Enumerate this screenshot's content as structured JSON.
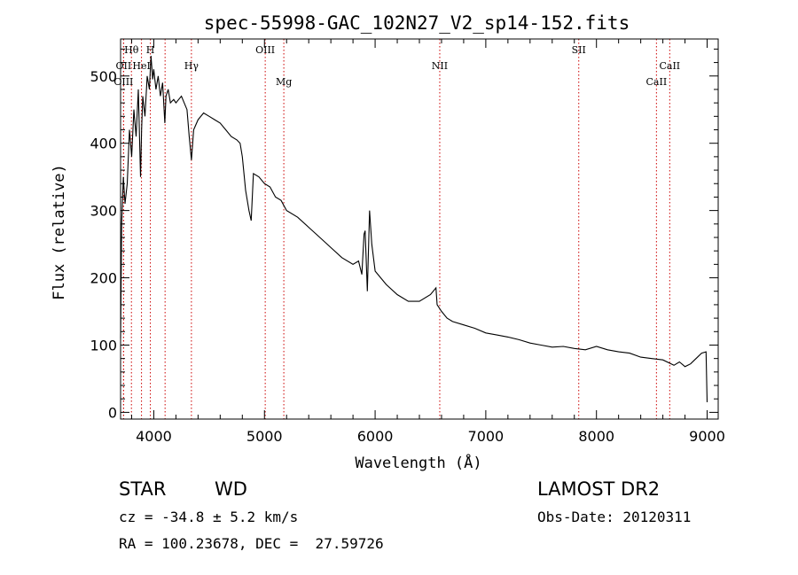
{
  "colors": {
    "line_marker": "#cc0000",
    "spectrum": "#000000"
  },
  "chart_data": {
    "type": "line",
    "title": "spec-55998-GAC_102N27_V2_sp14-152.fits",
    "xlabel": "Wavelength (Å)",
    "ylabel": "Flux (relative)",
    "xlim": [
      3700,
      9100
    ],
    "ylim": [
      -10,
      555
    ],
    "x_ticks": [
      4000,
      5000,
      6000,
      7000,
      8000,
      9000
    ],
    "y_ticks": [
      0,
      100,
      200,
      300,
      400,
      500
    ],
    "x_tick_labels": [
      "4000",
      "5000",
      "6000",
      "7000",
      "8000",
      "9000"
    ],
    "y_tick_labels": [
      "0",
      "100",
      "200",
      "300",
      "400",
      "500"
    ],
    "grid": false,
    "legend": "none",
    "spectral_lines": [
      {
        "label": "Hθ",
        "wavelength": 3798,
        "row": 0
      },
      {
        "label": "OII",
        "wavelength": 3727,
        "row": 1
      },
      {
        "label": "OIII",
        "wavelength": 3727,
        "row": 2
      },
      {
        "label": "HeI",
        "wavelength": 3889,
        "row": 1
      },
      {
        "label": "H",
        "wavelength": 3969,
        "row": 0
      },
      {
        "label": "",
        "wavelength": 4102,
        "row": 0
      },
      {
        "label": "Hγ",
        "wavelength": 4340,
        "row": 1
      },
      {
        "label": "OIII",
        "wavelength": 5007,
        "row": 0
      },
      {
        "label": "Mg",
        "wavelength": 5175,
        "row": 2
      },
      {
        "label": "NII",
        "wavelength": 6584,
        "row": 1
      },
      {
        "label": "SII",
        "wavelength": 7840,
        "row": 0
      },
      {
        "label": "CaII",
        "wavelength": 8542,
        "row": 2
      },
      {
        "label": "CaII",
        "wavelength": 8662,
        "row": 1
      }
    ],
    "series": [
      {
        "x": [
          3700,
          3710,
          3725,
          3740,
          3760,
          3780,
          3800,
          3820,
          3840,
          3860,
          3880,
          3890,
          3900,
          3920,
          3940,
          3960,
          3975,
          3990,
          4000,
          4020,
          4040,
          4060,
          4080,
          4100,
          4110,
          4130,
          4150,
          4180,
          4200,
          4250,
          4300,
          4320,
          4340,
          4360,
          4400,
          4450,
          4500,
          4550,
          4600,
          4650,
          4700,
          4750,
          4780,
          4800,
          4830,
          4860,
          4880,
          4900,
          4950,
          5000,
          5050,
          5100,
          5150,
          5200,
          5300,
          5400,
          5500,
          5600,
          5700,
          5800,
          5850,
          5880,
          5900,
          5910,
          5930,
          5950,
          5970,
          6000,
          6050,
          6100,
          6200,
          6300,
          6400,
          6500,
          6550,
          6560,
          6600,
          6650,
          6700,
          6800,
          6900,
          7000,
          7100,
          7200,
          7300,
          7400,
          7500,
          7600,
          7700,
          7800,
          7900,
          8000,
          8100,
          8200,
          8300,
          8400,
          8500,
          8600,
          8700,
          8750,
          8800,
          8850,
          8900,
          8950,
          8990,
          9000
        ],
        "y": [
          110,
          280,
          350,
          310,
          340,
          420,
          380,
          450,
          410,
          480,
          350,
          420,
          470,
          440,
          500,
          480,
          530,
          495,
          510,
          480,
          500,
          470,
          490,
          430,
          470,
          480,
          460,
          465,
          460,
          470,
          450,
          410,
          375,
          420,
          435,
          445,
          440,
          435,
          430,
          420,
          410,
          405,
          400,
          380,
          330,
          300,
          285,
          355,
          350,
          340,
          335,
          320,
          315,
          300,
          290,
          275,
          260,
          245,
          230,
          220,
          225,
          205,
          265,
          270,
          180,
          300,
          250,
          210,
          200,
          190,
          175,
          165,
          165,
          175,
          185,
          160,
          150,
          140,
          135,
          130,
          125,
          118,
          115,
          112,
          108,
          103,
          100,
          97,
          98,
          95,
          93,
          98,
          93,
          90,
          88,
          82,
          80,
          78,
          70,
          75,
          68,
          72,
          80,
          88,
          90,
          15
        ]
      }
    ]
  },
  "info": {
    "object_class": "STAR",
    "subclass": "WD",
    "survey": "LAMOST DR2",
    "redshift": "cz = -34.8 ± 5.2 km/s",
    "obs_date": "Obs-Date: 20120311",
    "coords": "RA = 100.23678, DEC =  27.59726"
  }
}
